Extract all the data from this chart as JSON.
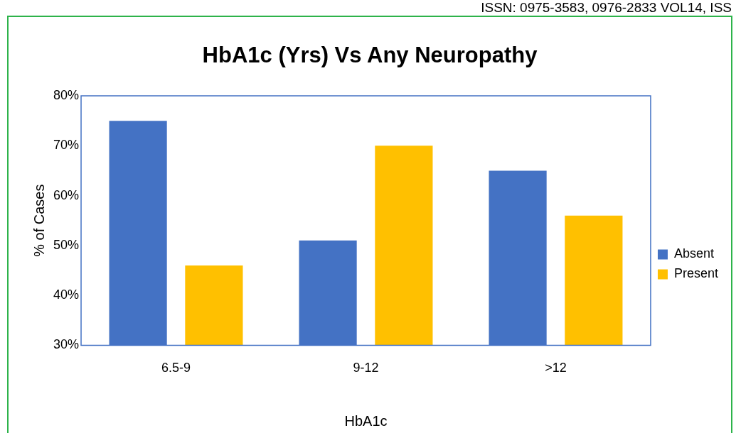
{
  "chart_data": {
    "type": "bar",
    "title": "HbA1c (Yrs) Vs Any Neuropathy",
    "xlabel": "HbA1c",
    "ylabel": "% of Cases",
    "categories": [
      "6.5-9",
      "9-12",
      ">12"
    ],
    "series": [
      {
        "name": "Absent",
        "color": "#4472c4",
        "values": [
          75,
          51,
          65
        ]
      },
      {
        "name": "Present",
        "color": "#ffc000",
        "values": [
          46,
          70,
          56
        ]
      }
    ],
    "ylim": [
      30,
      80
    ],
    "yticks": [
      {
        "value": 30,
        "label": "30%"
      },
      {
        "value": 40,
        "label": "40%"
      },
      {
        "value": 50,
        "label": "50%"
      },
      {
        "value": 60,
        "label": "60%"
      },
      {
        "value": 70,
        "label": "70%"
      },
      {
        "value": 80,
        "label": "80%"
      }
    ],
    "grid": false,
    "legend": "right",
    "annotations": [
      "ISSN: 0975-3583, 0976-2833 VOL14, ISS"
    ]
  }
}
